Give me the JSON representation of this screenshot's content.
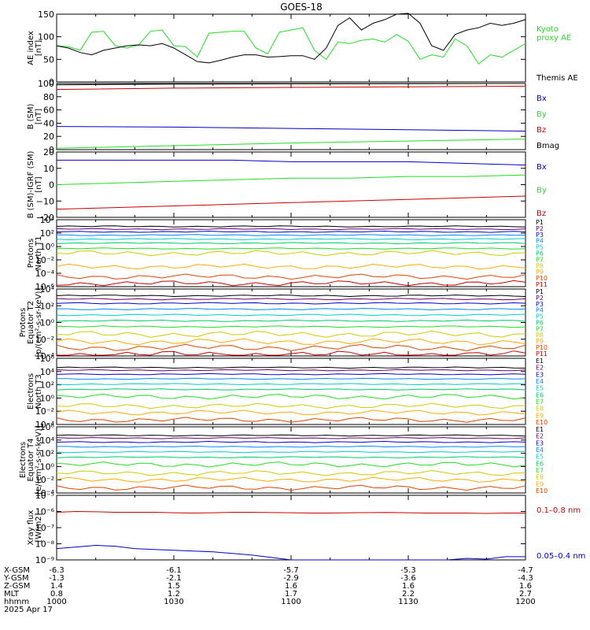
{
  "title": "GOES-18",
  "colors": {
    "black": "#000000",
    "green": "#22dd22",
    "blue": "#0000cc",
    "red": "#cc0000",
    "p_palette": [
      "#000000",
      "#660066",
      "#0000cc",
      "#0088ff",
      "#00cccc",
      "#00cc66",
      "#22dd22",
      "#cccc00",
      "#ffaa00",
      "#dd4400",
      "#cc0000"
    ]
  },
  "ephemeris": {
    "row_labels": [
      "X-GSM",
      "Y-GSM",
      "Z-GSM",
      "MLT",
      "hhmm",
      "2025 Apr 17"
    ],
    "columns": [
      {
        "values": [
          "-6.3",
          "-1.3",
          "1.4",
          "0.8",
          "1000"
        ]
      },
      {
        "values": [
          "-6.1",
          "-2.1",
          "1.5",
          "1.2",
          "1030"
        ]
      },
      {
        "values": [
          "-5.7",
          "-2.9",
          "1.6",
          "1.7",
          "1100"
        ]
      },
      {
        "values": [
          "-5.3",
          "-3.6",
          "1.6",
          "2.2",
          "1130"
        ]
      },
      {
        "values": [
          "-4.7",
          "-4.3",
          "1.6",
          "2.7",
          "1200"
        ]
      }
    ]
  },
  "chart_data": [
    {
      "id": "ae",
      "type": "line",
      "ylabel_lines": [
        "AE index",
        "[nT]"
      ],
      "ylim": [
        0,
        150
      ],
      "yticks": [
        {
          "v": 0,
          "t": "0"
        },
        {
          "v": 50,
          "t": "50"
        },
        {
          "v": 100,
          "t": "100"
        },
        {
          "v": 150,
          "t": "150"
        }
      ],
      "x": [
        0,
        3,
        6,
        9,
        12,
        15,
        18,
        21,
        24,
        27,
        30,
        33,
        36,
        39,
        42,
        45,
        48,
        51,
        54,
        57,
        60,
        63,
        66,
        69,
        72,
        75,
        78,
        81,
        84,
        87,
        90,
        93,
        96,
        99,
        102,
        105,
        108,
        111,
        114,
        117,
        120
      ],
      "series": [
        {
          "name": "Kyoto proxy AE",
          "label_lines": [
            "Kyoto",
            "proxy AE"
          ],
          "color": "green",
          "values": [
            80,
            78,
            70,
            110,
            112,
            80,
            75,
            82,
            112,
            115,
            80,
            78,
            55,
            108,
            110,
            112,
            112,
            75,
            62,
            110,
            115,
            120,
            70,
            50,
            88,
            85,
            92,
            95,
            88,
            105,
            90,
            50,
            60,
            55,
            95,
            80,
            40,
            60,
            55,
            70,
            85
          ]
        },
        {
          "name": "Themis AE",
          "label_lines": [
            "Themis AE"
          ],
          "color": "black",
          "values": [
            80,
            75,
            65,
            60,
            70,
            75,
            80,
            82,
            80,
            85,
            75,
            60,
            45,
            42,
            48,
            55,
            60,
            60,
            55,
            56,
            58,
            58,
            50,
            75,
            125,
            142,
            115,
            130,
            138,
            150,
            152,
            130,
            80,
            70,
            105,
            115,
            120,
            130,
            125,
            130,
            138
          ]
        }
      ]
    },
    {
      "id": "bsm",
      "type": "line",
      "ylabel_lines": [
        "B (SM)",
        "[nT]"
      ],
      "ylim": [
        0,
        100
      ],
      "yticks": [
        {
          "v": 0,
          "t": "0"
        },
        {
          "v": 20,
          "t": "20"
        },
        {
          "v": 40,
          "t": "40"
        },
        {
          "v": 60,
          "t": "60"
        },
        {
          "v": 80,
          "t": "80"
        },
        {
          "v": 100,
          "t": "100"
        }
      ],
      "x": [
        0,
        30,
        60,
        90,
        120
      ],
      "series": [
        {
          "name": "Bx",
          "label_lines": [
            "Bx"
          ],
          "color": "blue",
          "values": [
            35,
            34,
            32,
            30,
            28
          ]
        },
        {
          "name": "By",
          "label_lines": [
            "By"
          ],
          "color": "green",
          "values": [
            2,
            6,
            10,
            13,
            16
          ]
        },
        {
          "name": "Bz",
          "label_lines": [
            "Bz"
          ],
          "color": "red",
          "values": [
            91,
            93,
            94,
            95,
            96
          ]
        },
        {
          "name": "Bmag",
          "label_lines": [
            "Bmag"
          ],
          "color": "black",
          "values": [
            98,
            99,
            99.5,
            99.8,
            100
          ]
        }
      ]
    },
    {
      "id": "bigrf",
      "type": "line",
      "ylabel_lines": [
        "B (SM)-IGRF (SM)",
        "[nT]"
      ],
      "ylim": [
        -20,
        20
      ],
      "yticks": [
        {
          "v": -20,
          "t": "−20"
        },
        {
          "v": -10,
          "t": "−10"
        },
        {
          "v": 0,
          "t": "0"
        },
        {
          "v": 10,
          "t": "10"
        },
        {
          "v": 20,
          "t": "20"
        }
      ],
      "x": [
        0,
        15,
        30,
        45,
        60,
        75,
        90,
        105,
        120
      ],
      "series": [
        {
          "name": "Bx",
          "label_lines": [
            "Bx"
          ],
          "color": "blue",
          "values": [
            15,
            15,
            15,
            15,
            14,
            14,
            14,
            13,
            12
          ]
        },
        {
          "name": "By",
          "label_lines": [
            "By"
          ],
          "color": "green",
          "values": [
            0,
            1,
            2,
            3,
            4,
            4,
            5,
            5,
            6
          ]
        },
        {
          "name": "Bz",
          "label_lines": [
            "Bz"
          ],
          "color": "red",
          "values": [
            -15,
            -14,
            -13,
            -12,
            -11,
            -10,
            -9,
            -8,
            -7
          ]
        }
      ]
    },
    {
      "id": "pnorth",
      "type": "line",
      "log": true,
      "ylabel_lines": [
        "Protons",
        "North T1"
      ],
      "ylim": [
        -6,
        4
      ],
      "yticks": [
        {
          "v": -6,
          "t": "10⁻⁶"
        },
        {
          "v": -4,
          "t": "10⁻⁴"
        },
        {
          "v": -2,
          "t": "10⁻²"
        },
        {
          "v": 0,
          "t": "10⁰"
        },
        {
          "v": 2,
          "t": "10²"
        },
        {
          "v": 4,
          "t": "10⁴"
        }
      ],
      "channels": [
        "P1",
        "P2",
        "P3",
        "P4",
        "P5",
        "P6",
        "P7",
        "P8",
        "P9",
        "P10",
        "P11"
      ],
      "levels": [
        3.0,
        2.6,
        2.2,
        1.7,
        1.1,
        0.5,
        -0.3,
        -1.0,
        -3.0,
        -4.5,
        -5.5
      ]
    },
    {
      "id": "pequ",
      "type": "line",
      "log": true,
      "ylabel_lines": [
        "Protons",
        "Equator T2",
        "[p/(cm²-s-sr-keV)]"
      ],
      "ylim": [
        -4,
        4
      ],
      "yticks": [
        {
          "v": -4,
          "t": "10⁻⁴"
        },
        {
          "v": -2,
          "t": "10⁻²"
        },
        {
          "v": 0,
          "t": "10⁰"
        },
        {
          "v": 2,
          "t": "10²"
        },
        {
          "v": 4,
          "t": "10⁴"
        }
      ],
      "channels": [
        "P1",
        "P2",
        "P3",
        "P4",
        "P5",
        "P6",
        "P7",
        "P8",
        "P9",
        "P10",
        "P11"
      ],
      "levels": [
        3.2,
        2.8,
        2.3,
        1.6,
        0.9,
        0.2,
        -0.5,
        -1.4,
        -2.3,
        -3.0,
        -3.8
      ]
    },
    {
      "id": "enorth",
      "type": "line",
      "log": true,
      "ylabel_lines": [
        "Electrons",
        "North T3"
      ],
      "ylim": [
        -4,
        6
      ],
      "yticks": [
        {
          "v": -4,
          "t": "10⁻⁴"
        },
        {
          "v": -2,
          "t": "10⁻²"
        },
        {
          "v": 0,
          "t": "10⁰"
        },
        {
          "v": 2,
          "t": "10²"
        },
        {
          "v": 4,
          "t": "10⁴"
        },
        {
          "v": 6,
          "t": "10⁶"
        }
      ],
      "channels": [
        "E1",
        "E2",
        "E3",
        "E4",
        "E5",
        "E6",
        "E7",
        "E8",
        "E9",
        "E10"
      ],
      "levels": [
        4.6,
        4.2,
        3.6,
        2.9,
        2.1,
        1.3,
        0.2,
        -1.2,
        -2.2,
        -3.3
      ]
    },
    {
      "id": "eequ",
      "type": "line",
      "log": true,
      "ylabel_lines": [
        "Electrons",
        "Equator T4",
        "[e/(cm²-s-sr-keV)]"
      ],
      "ylim": [
        -4,
        6
      ],
      "yticks": [
        {
          "v": -4,
          "t": "10⁻⁴"
        },
        {
          "v": -2,
          "t": "10⁻²"
        },
        {
          "v": 0,
          "t": "10⁰"
        },
        {
          "v": 2,
          "t": "10²"
        },
        {
          "v": 4,
          "t": "10⁴"
        },
        {
          "v": 6,
          "t": "10⁶"
        }
      ],
      "channels": [
        "E1",
        "E2",
        "E3",
        "E4",
        "E5",
        "E6",
        "E7",
        "E8",
        "E9",
        "E10"
      ],
      "levels": [
        4.7,
        4.3,
        3.7,
        3.0,
        2.2,
        1.4,
        0.3,
        -1.0,
        -2.0,
        -3.2
      ]
    },
    {
      "id": "xray",
      "type": "line",
      "log": true,
      "ylabel_lines": [
        "Xray flux",
        "[W/m2]"
      ],
      "ylim": [
        -9,
        -5
      ],
      "yticks": [
        {
          "v": -9,
          "t": "10⁻⁹"
        },
        {
          "v": -8,
          "t": "10⁻⁸"
        },
        {
          "v": -7,
          "t": "10⁻⁷"
        },
        {
          "v": -6,
          "t": "10⁻⁶"
        },
        {
          "v": -5,
          "t": "10⁻⁵"
        }
      ],
      "x": [
        0,
        5,
        10,
        15,
        20,
        25,
        30,
        35,
        40,
        45,
        50,
        55,
        60,
        65,
        70,
        75,
        80,
        85,
        90,
        95,
        100,
        105,
        110,
        115,
        120
      ],
      "series": [
        {
          "name": "0.1-0.8 nm",
          "label_lines": [
            "0.1–0.8 nm"
          ],
          "color": "red",
          "values": [
            -6.05,
            -6.0,
            -6.02,
            -6.05,
            -6.05,
            -6.05,
            -6.08,
            -6.1,
            -6.08,
            -6.05,
            -6.05,
            -6.07,
            -6.08,
            -6.1,
            -6.1,
            -6.08,
            -6.07,
            -6.06,
            -6.08,
            -6.1,
            -6.1,
            -6.1,
            -6.12,
            -6.1,
            -6.1
          ]
        },
        {
          "name": "0.05-0.4 nm",
          "label_lines": [
            "0.05–0.4 nm"
          ],
          "color": "blue",
          "values": [
            -8.3,
            -8.2,
            -8.1,
            -8.15,
            -8.3,
            -8.35,
            -8.4,
            -8.45,
            -8.5,
            -8.6,
            -8.7,
            -8.85,
            -9.0,
            -9.0,
            -9.0,
            -9.0,
            -9.0,
            -9.0,
            -9.0,
            -9.0,
            -9.0,
            -8.9,
            -8.95,
            -8.8,
            -8.8
          ]
        }
      ]
    }
  ]
}
